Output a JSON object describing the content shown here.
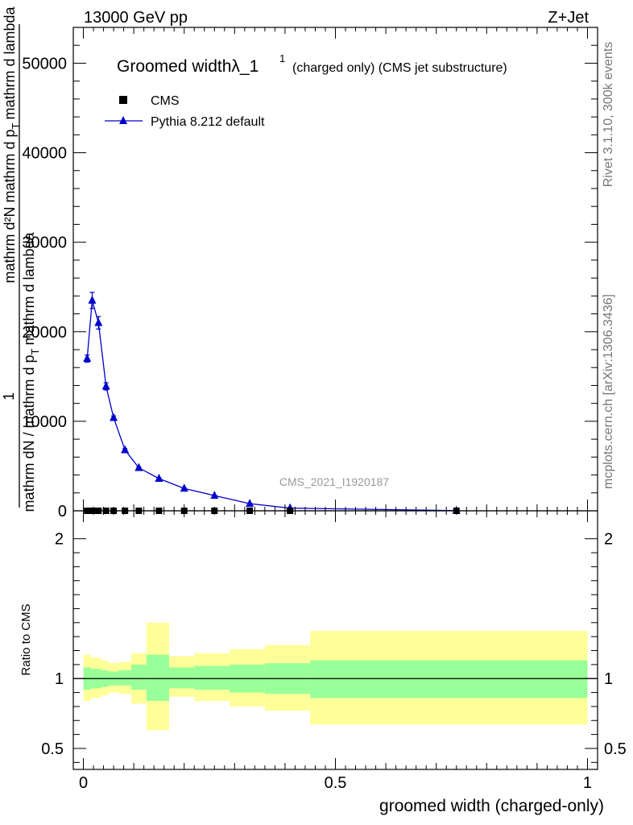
{
  "header": {
    "energy_label": "13000 GeV pp",
    "process_label": "Z+Jet"
  },
  "side_labels": {
    "rivet_version": "Rivet 3.1.10,  300k events",
    "source": "mcplots.cern.ch [arXiv:1306.3436]"
  },
  "watermark": "CMS_2021_I1920187",
  "chart_data": [
    {
      "type": "scatter",
      "panel": "main",
      "title": "Groomed widthλ_1",
      "title_sup": "1",
      "title_small": "(charged only) (CMS jet substructure)",
      "xlim": [
        -0.02,
        1.02
      ],
      "ylim": [
        0,
        54000
      ],
      "yticks": [
        0,
        10000,
        20000,
        30000,
        40000,
        50000
      ],
      "ytick_labels": [
        "0",
        "10000",
        "20000",
        "30000",
        "40000",
        "50000"
      ],
      "ylabel_lines": [
        "mathrm dN / mathrm d p_T mathrm d lambda",
        "1",
        "mathrm dN / mathrm d p_T mathrm d p_T mathrm d lambda"
      ],
      "ylabel_numer": "mathrm d²N",
      "ylabel_numer_tail": "mathrm d p",
      "ylabel_numer_sub": "T",
      "ylabel_numer_end": "mathrm d lambda",
      "ylabel_one": "1",
      "ylabel_denom": "mathrm dN / mathrm d p",
      "ylabel_denom_sub": "T",
      "ylabel_denom_end": "mathrm d lambda",
      "legend": {
        "position": "top-left",
        "entries": [
          "CMS",
          "Pythia 8.212 default"
        ]
      },
      "series": [
        {
          "name": "CMS",
          "color": "#000000",
          "marker": "square",
          "x": [
            0.0075,
            0.0175,
            0.03,
            0.045,
            0.06,
            0.0825,
            0.11,
            0.15,
            0.2,
            0.26,
            0.33,
            0.41,
            0.74
          ],
          "y": [
            0,
            0,
            0,
            0,
            0,
            0,
            0,
            0,
            0,
            0,
            0,
            0,
            0
          ]
        },
        {
          "name": "Pythia 8.212 default",
          "color": "#0000cc",
          "marker": "triangle",
          "x": [
            0.0075,
            0.0175,
            0.03,
            0.045,
            0.06,
            0.0825,
            0.11,
            0.15,
            0.2,
            0.26,
            0.33,
            0.41,
            0.74
          ],
          "y": [
            17000,
            23500,
            21000,
            13900,
            10400,
            6800,
            4800,
            3600,
            2500,
            1700,
            800,
            300,
            20
          ],
          "yerr": [
            400,
            900,
            700,
            400,
            200,
            150,
            100,
            80,
            60,
            50,
            30,
            20,
            5
          ]
        }
      ]
    },
    {
      "type": "area",
      "panel": "ratio",
      "xlabel": "groomed width (charged-only)",
      "ylabel": "Ratio to CMS",
      "xlim": [
        -0.02,
        1.02
      ],
      "ylim": [
        0.35,
        2.2
      ],
      "xticks": [
        0,
        0.5,
        1
      ],
      "xtick_labels": [
        "0",
        "0.5",
        "1"
      ],
      "yticks": [
        0.5,
        1,
        2
      ],
      "ytick_labels": [
        "0.5",
        "1",
        "2"
      ],
      "reference_line": 1,
      "bins": [
        {
          "x0": 0.0,
          "x1": 0.015,
          "stat_lo": 0.92,
          "stat_hi": 1.08,
          "tot_lo": 0.84,
          "tot_hi": 1.17
        },
        {
          "x0": 0.015,
          "x1": 0.035,
          "stat_lo": 0.93,
          "stat_hi": 1.07,
          "tot_lo": 0.86,
          "tot_hi": 1.15
        },
        {
          "x0": 0.035,
          "x1": 0.05,
          "stat_lo": 0.94,
          "stat_hi": 1.06,
          "tot_lo": 0.88,
          "tot_hi": 1.13
        },
        {
          "x0": 0.05,
          "x1": 0.07,
          "stat_lo": 0.95,
          "stat_hi": 1.05,
          "tot_lo": 0.9,
          "tot_hi": 1.11
        },
        {
          "x0": 0.07,
          "x1": 0.095,
          "stat_lo": 0.95,
          "stat_hi": 1.06,
          "tot_lo": 0.89,
          "tot_hi": 1.12
        },
        {
          "x0": 0.095,
          "x1": 0.125,
          "stat_lo": 0.92,
          "stat_hi": 1.1,
          "tot_lo": 0.82,
          "tot_hi": 1.18
        },
        {
          "x0": 0.125,
          "x1": 0.17,
          "stat_lo": 0.84,
          "stat_hi": 1.17,
          "tot_lo": 0.63,
          "tot_hi": 1.4
        },
        {
          "x0": 0.17,
          "x1": 0.22,
          "stat_lo": 0.93,
          "stat_hi": 1.08,
          "tot_lo": 0.87,
          "tot_hi": 1.16
        },
        {
          "x0": 0.22,
          "x1": 0.29,
          "stat_lo": 0.92,
          "stat_hi": 1.09,
          "tot_lo": 0.84,
          "tot_hi": 1.18
        },
        {
          "x0": 0.29,
          "x1": 0.36,
          "stat_lo": 0.9,
          "stat_hi": 1.1,
          "tot_lo": 0.8,
          "tot_hi": 1.21
        },
        {
          "x0": 0.36,
          "x1": 0.45,
          "stat_lo": 0.89,
          "stat_hi": 1.11,
          "tot_lo": 0.77,
          "tot_hi": 1.24
        },
        {
          "x0": 0.45,
          "x1": 1.0,
          "stat_lo": 0.86,
          "stat_hi": 1.13,
          "tot_lo": 0.67,
          "tot_hi": 1.34
        }
      ],
      "stat_color": "#99ff99",
      "total_color": "#ffff99"
    }
  ]
}
